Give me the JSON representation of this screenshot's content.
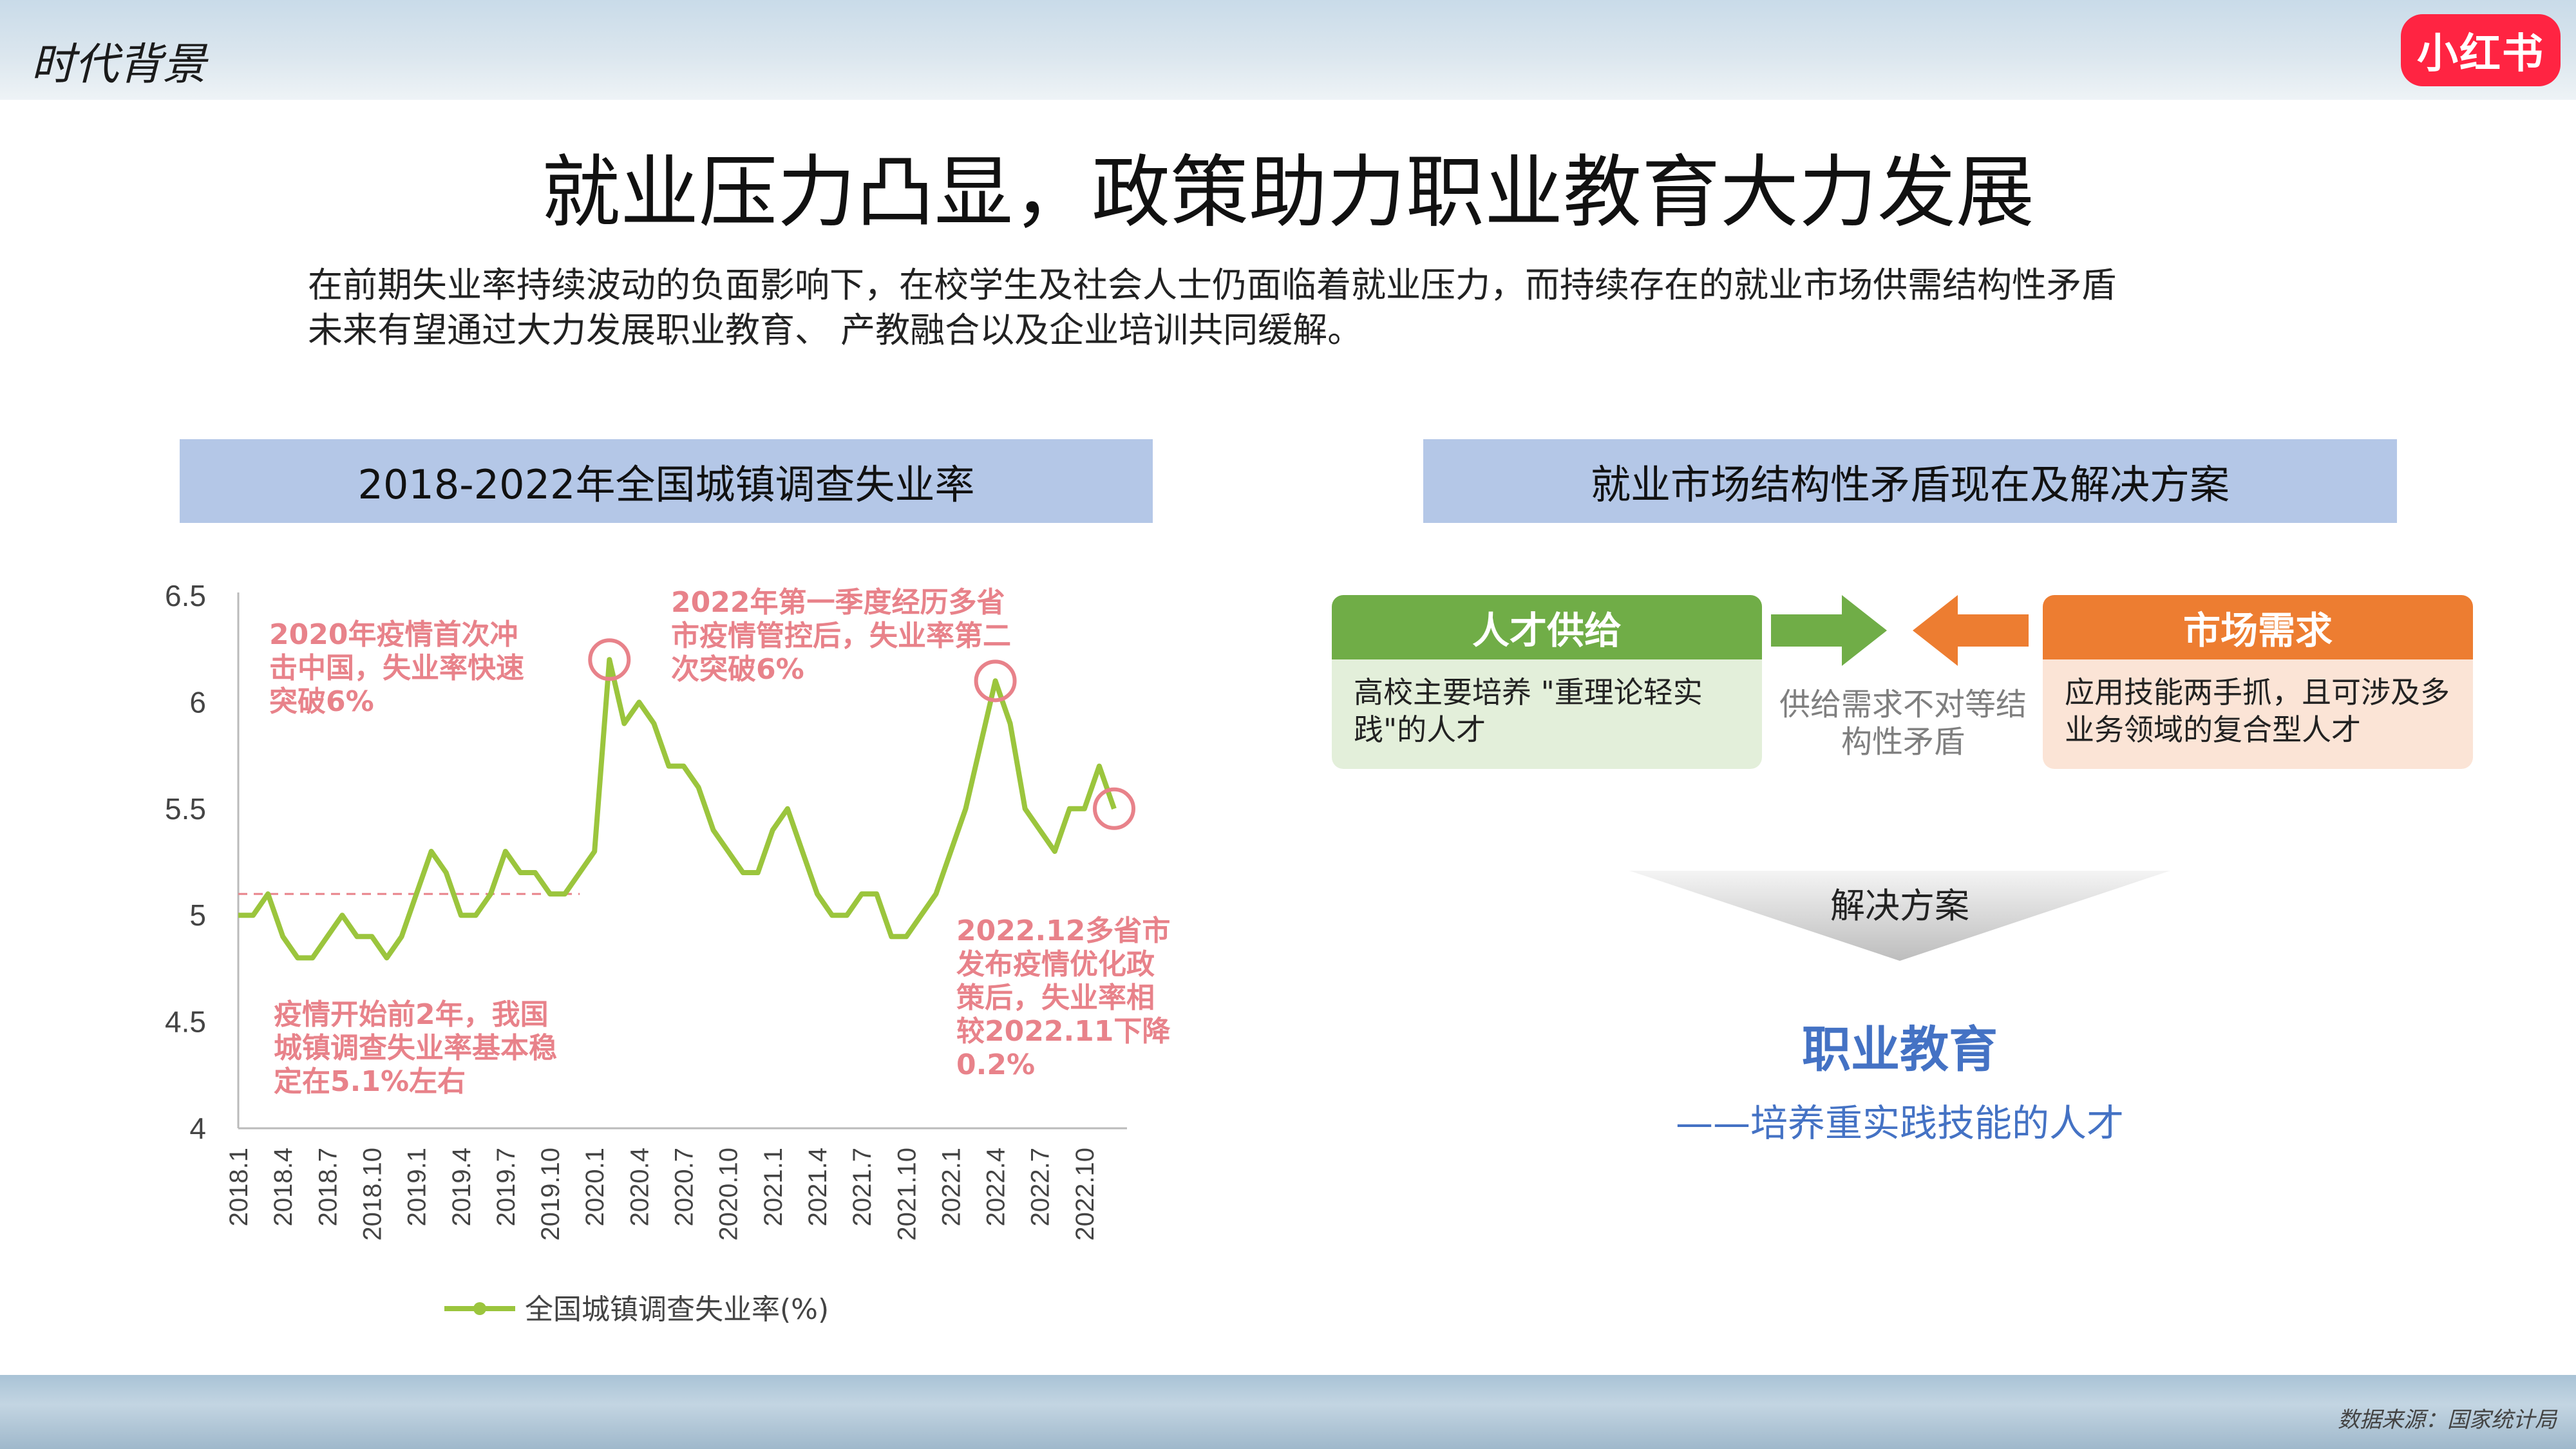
{
  "header": {
    "section": "时代背景",
    "logo": "小红书"
  },
  "title": "就业压力凸显，政策助力职业教育大力发展",
  "intro": {
    "line1": "在前期失业率持续波动的负面影响下，在校学生及社会人士仍面临着就业压力，而持续存在的就业市场供需结构性矛盾",
    "line2": "未来有望通过大力发展职业教育、  产教融合以及企业培训共同缓解。"
  },
  "left_banner": "2018-2022年全国城镇调查失业率",
  "right_banner": "就业市场结构性矛盾现在及解决方案",
  "chart_data": {
    "type": "line",
    "series": [
      {
        "name": "全国城镇调查失业率(%)",
        "color": "#9bc53d",
        "x": [
          "2018.1",
          "2018.2",
          "2018.3",
          "2018.4",
          "2018.5",
          "2018.6",
          "2018.7",
          "2018.8",
          "2018.9",
          "2018.10",
          "2018.11",
          "2018.12",
          "2019.1",
          "2019.2",
          "2019.3",
          "2019.4",
          "2019.5",
          "2019.6",
          "2019.7",
          "2019.8",
          "2019.9",
          "2019.10",
          "2019.11",
          "2019.12",
          "2020.1",
          "2020.2",
          "2020.3",
          "2020.4",
          "2020.5",
          "2020.6",
          "2020.7",
          "2020.8",
          "2020.9",
          "2020.10",
          "2020.11",
          "2020.12",
          "2021.1",
          "2021.2",
          "2021.3",
          "2021.4",
          "2021.5",
          "2021.6",
          "2021.7",
          "2021.8",
          "2021.9",
          "2021.10",
          "2021.11",
          "2021.12",
          "2022.1",
          "2022.2",
          "2022.3",
          "2022.4",
          "2022.5",
          "2022.6",
          "2022.7",
          "2022.8",
          "2022.9",
          "2022.10",
          "2022.11",
          "2022.12"
        ],
        "values": [
          5.0,
          5.0,
          5.1,
          4.9,
          4.8,
          4.8,
          4.9,
          5.0,
          4.9,
          4.9,
          4.8,
          4.9,
          5.1,
          5.3,
          5.2,
          5.0,
          5.0,
          5.1,
          5.3,
          5.2,
          5.2,
          5.1,
          5.1,
          5.2,
          5.3,
          6.2,
          5.9,
          6.0,
          5.9,
          5.7,
          5.7,
          5.6,
          5.4,
          5.3,
          5.2,
          5.2,
          5.4,
          5.5,
          5.3,
          5.1,
          5.0,
          5.0,
          5.1,
          5.1,
          4.9,
          4.9,
          5.0,
          5.1,
          5.3,
          5.5,
          5.8,
          6.1,
          5.9,
          5.5,
          5.4,
          5.3,
          5.5,
          5.5,
          5.7,
          5.5
        ]
      }
    ],
    "ylim": [
      4,
      6.5
    ],
    "yticks": [
      "6.5",
      "6",
      "5.5",
      "5",
      "4.5",
      "4"
    ],
    "xtick_labels": [
      "2018.1",
      "2018.4",
      "2018.7",
      "2018.10",
      "2019.1",
      "2019.4",
      "2019.7",
      "2019.10",
      "2020.1",
      "2020.4",
      "2020.7",
      "2020.10",
      "2021.1",
      "2021.4",
      "2021.7",
      "2021.10",
      "2022.1",
      "2022.4",
      "2022.7",
      "2022.10"
    ],
    "reference_line": 5.1,
    "legend": "全国城镇调查失业率(%)",
    "legend_position": "bottom",
    "highlight": [
      "2020.2",
      "2022.4",
      "2022.12"
    ],
    "annotations": {
      "a2020": [
        "2020年疫情首次冲",
        "击中国，失业率快速",
        "突破6%"
      ],
      "a2022q1": [
        "2022年第一季度经历多省",
        "市疫情管控后，失业率第二",
        "次突破6%"
      ],
      "a2022dec": [
        "2022.12多省市",
        "发布疫情优化政",
        "策后，失业率相",
        "较2022.11下降",
        "0.2%"
      ],
      "apre": [
        "疫情开始前2年，我国",
        "城镇调查失业率基本稳",
        "定在5.1%左右"
      ]
    },
    "annotation_color": "#e8828a"
  },
  "supply": {
    "title": "人才供给",
    "desc": "高校主要培养 \"重理论轻实践\"的人才"
  },
  "demand": {
    "title": "市场需求",
    "desc": "应用技能两手抓，且可涉及多业务领域的复合型人才"
  },
  "mismatch": "供给需求不对等结构性矛盾",
  "solution": {
    "label": "解决方案",
    "title": "职业教育",
    "subtitle": "——培养重实践技能的人才"
  },
  "footer": {
    "source": "数据来源：国家统计局"
  },
  "colors": {
    "banner": "#b4c7e7",
    "supply": "#70ad47",
    "demand": "#ed7d31",
    "accent": "#4472c4"
  }
}
